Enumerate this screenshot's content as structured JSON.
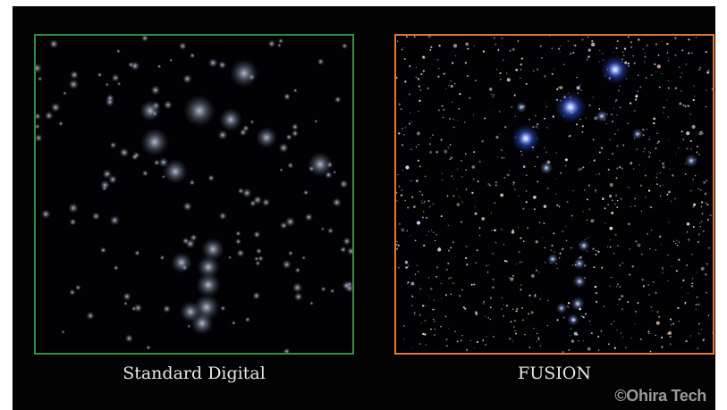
{
  "comparison": {
    "left_label": "Standard Digital",
    "right_label": "FUSION",
    "credit": "©Ohira Tech"
  },
  "colors": {
    "left_border": "#2f8f3a",
    "right_border": "#e07a33",
    "background": "#030303",
    "bright_star": "#6a8cff"
  }
}
